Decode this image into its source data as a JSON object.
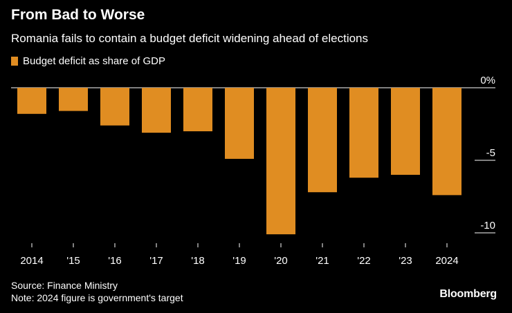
{
  "chart_data": {
    "type": "bar",
    "title": "From Bad to Worse",
    "subtitle": "Romania fails to contain a budget deficit widening ahead of elections",
    "legend": [
      {
        "name": "Budget deficit as share of GDP",
        "color": "#E08D22"
      }
    ],
    "categories": [
      "2014",
      "'15",
      "'16",
      "'17",
      "'18",
      "'19",
      "'20",
      "'21",
      "'22",
      "'23",
      "2024"
    ],
    "series": [
      {
        "name": "Budget deficit as share of GDP",
        "values": [
          -1.8,
          -1.6,
          -2.6,
          -3.1,
          -3.0,
          -4.9,
          -10.1,
          -7.2,
          -6.2,
          -6.0,
          -7.4
        ]
      }
    ],
    "ylim": [
      -10.5,
      0
    ],
    "yticks": [
      0,
      -5,
      -10
    ],
    "ytick_labels": [
      "0%",
      "-5",
      "-10"
    ],
    "xlabel": "",
    "ylabel": "",
    "legend_position": "top-left",
    "colors": {
      "bar": "#E08D22",
      "background": "#000000",
      "text": "#FFFFFF",
      "axis": "#FFFFFF"
    }
  },
  "footer": {
    "source": "Source: Finance Ministry",
    "note": "Note: 2024 figure is government's target"
  },
  "brand": "Bloomberg"
}
